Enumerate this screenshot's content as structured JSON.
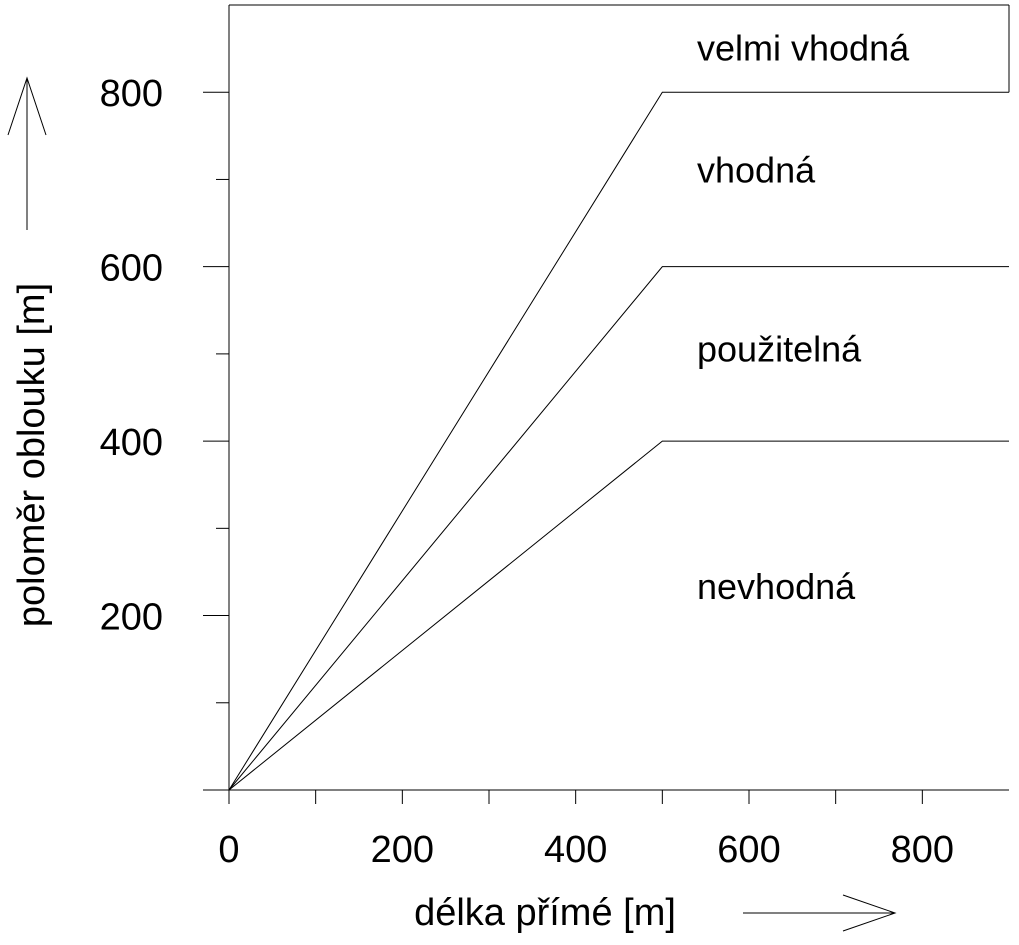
{
  "chart_data": {
    "type": "line",
    "title": "",
    "xlabel": "délka přímé [m]",
    "ylabel": "poloměr oblouku [m]",
    "xlim": [
      0,
      900
    ],
    "ylim": [
      0,
      900
    ],
    "x_ticks": [
      0,
      200,
      400,
      600,
      800
    ],
    "x_minor_ticks": [
      100,
      300,
      500,
      700
    ],
    "y_ticks": [
      200,
      400,
      600,
      800
    ],
    "y_minor_ticks": [
      100,
      300,
      500,
      700
    ],
    "x_tick_labels": [
      "0",
      "200",
      "400",
      "600",
      "800"
    ],
    "y_tick_labels": [
      "200",
      "400",
      "600",
      "800"
    ],
    "grid": false,
    "series": [
      {
        "x": [
          0,
          500,
          900
        ],
        "y": [
          0,
          800,
          800
        ]
      },
      {
        "x": [
          0,
          500,
          900
        ],
        "y": [
          0,
          600,
          600
        ]
      },
      {
        "x": [
          0,
          500,
          900
        ],
        "y": [
          0,
          400,
          400
        ]
      }
    ],
    "regions": [
      {
        "label": "velmi vhodná",
        "x": 540,
        "y": 850
      },
      {
        "label": "vhodná",
        "x": 540,
        "y": 710
      },
      {
        "label": "použitelná",
        "x": 540,
        "y": 505
      },
      {
        "label": "nevhodná",
        "x": 540,
        "y": 233
      }
    ],
    "line_color": "#000000"
  }
}
